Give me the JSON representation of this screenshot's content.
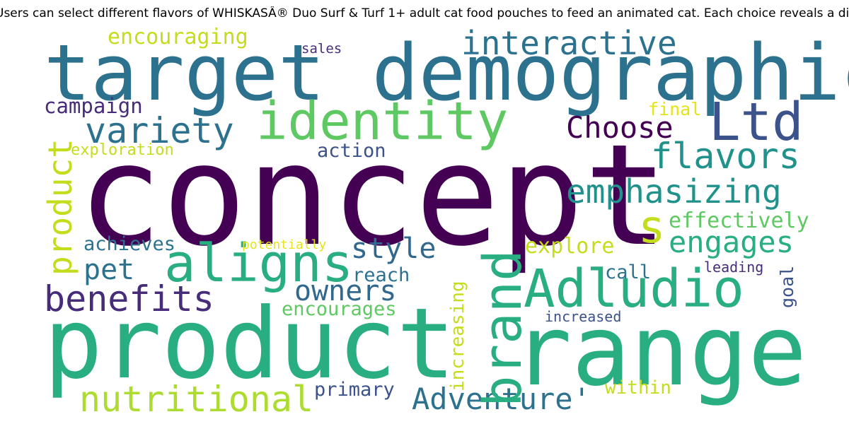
{
  "title": "Users can select different flavors of WHISKASÂ® Duo Surf & Turf 1+ adult cat food pouches to feed an animated cat. Each choice reveals a different",
  "colors": {
    "dark_purple": "#440154",
    "indigo": "#3b528b",
    "blue_teal": "#2c728e",
    "teal": "#21918c",
    "green_teal": "#28ae80",
    "green": "#5ec962",
    "lime": "#addc30",
    "yellow": "#fde725"
  },
  "words": {
    "w01": "target demographic",
    "w02": "concept",
    "w03": "product",
    "w04": "range",
    "w05": "identity",
    "w06": "Ltd",
    "w07": "aligns",
    "w08": "brand",
    "w09": "Adludio",
    "w10": "product",
    "w11": "s",
    "w12": "interactive",
    "w13": "variety",
    "w14": "flavors",
    "w15": "emphasizing",
    "w16": "Choose",
    "w17": "benefits",
    "w18": "nutritional",
    "w19": "Adventure'",
    "w20": "engages",
    "w21": "style",
    "w22": "owners",
    "w23": "pet",
    "w24": "encouraging",
    "w25": "campaign",
    "w26": "effectively",
    "w27": "explore",
    "w28": "action",
    "w29": "exploration",
    "w30": "final",
    "w31": "achieves",
    "w32": "reach",
    "w33": "encourages",
    "w34": "primary",
    "w35": "within",
    "w36": "call",
    "w37": "leading",
    "w38": "goal",
    "w39": "increased",
    "w40": "increasing",
    "w41": "potentially",
    "w42": "sales"
  }
}
